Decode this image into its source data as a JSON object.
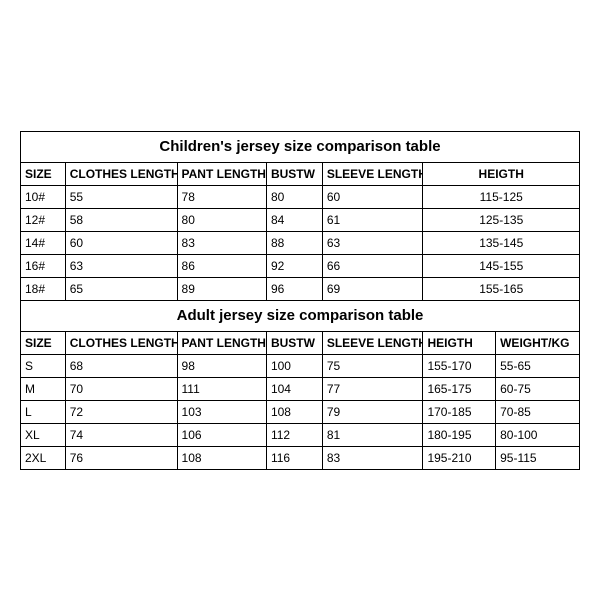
{
  "children": {
    "title": "Children's jersey size comparison table",
    "columns": [
      "SIZE",
      "CLOTHES LENGTH",
      "PANT LENGTH",
      "BUSTW",
      "SLEEVE LENGTH",
      "HEIGTH"
    ],
    "rows": [
      [
        "10#",
        "55",
        "78",
        "80",
        "60",
        "115-125"
      ],
      [
        "12#",
        "58",
        "80",
        "84",
        "61",
        "125-135"
      ],
      [
        "14#",
        "60",
        "83",
        "88",
        "63",
        "135-145"
      ],
      [
        "16#",
        "63",
        "86",
        "92",
        "66",
        "145-155"
      ],
      [
        "18#",
        "65",
        "89",
        "96",
        "69",
        "155-165"
      ]
    ]
  },
  "adult": {
    "title": "Adult jersey size comparison table",
    "columns": [
      "SIZE",
      "CLOTHES LENGTH",
      "PANT LENGTH",
      "BUSTW",
      "SLEEVE LENGTH",
      "HEIGTH",
      "WEIGHT/KG"
    ],
    "rows": [
      [
        "S",
        "68",
        "98",
        "100",
        "75",
        "155-170",
        "55-65"
      ],
      [
        "M",
        "70",
        "111",
        "104",
        "77",
        "165-175",
        "60-75"
      ],
      [
        "L",
        "72",
        "103",
        "108",
        "79",
        "170-185",
        "70-85"
      ],
      [
        "XL",
        "74",
        "106",
        "112",
        "81",
        "180-195",
        "80-100"
      ],
      [
        "2XL",
        "76",
        "108",
        "116",
        "83",
        "195-210",
        "95-115"
      ]
    ]
  },
  "style": {
    "border_color": "#000000",
    "background": "#ffffff",
    "title_fontsize": 15,
    "header_fontsize": 12,
    "cell_fontsize": 12
  }
}
